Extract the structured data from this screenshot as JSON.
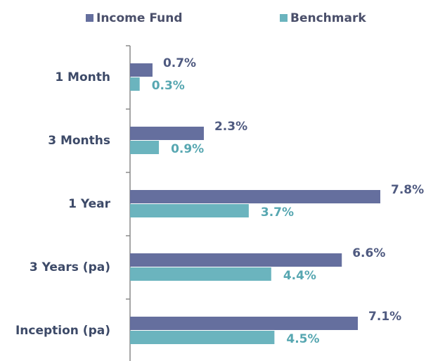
{
  "chart_data": {
    "type": "bar",
    "orientation": "horizontal",
    "categories": [
      "1 Month",
      "3 Months",
      "1 Year",
      "3 Years (pa)",
      "Inception (pa)"
    ],
    "series": [
      {
        "name": "Income Fund",
        "color": "#656f9e",
        "values": [
          0.7,
          2.3,
          7.8,
          6.6,
          7.1
        ],
        "value_labels": [
          "0.7%",
          "2.3%",
          "7.8%",
          "6.6%",
          "7.1%"
        ]
      },
      {
        "name": "Benchmark",
        "color": "#6bb4be",
        "values": [
          0.3,
          0.9,
          3.7,
          4.4,
          4.5
        ],
        "value_labels": [
          "0.3%",
          "0.9%",
          "3.7%",
          "4.4%",
          "4.5%"
        ]
      }
    ],
    "legend": "top"
  }
}
